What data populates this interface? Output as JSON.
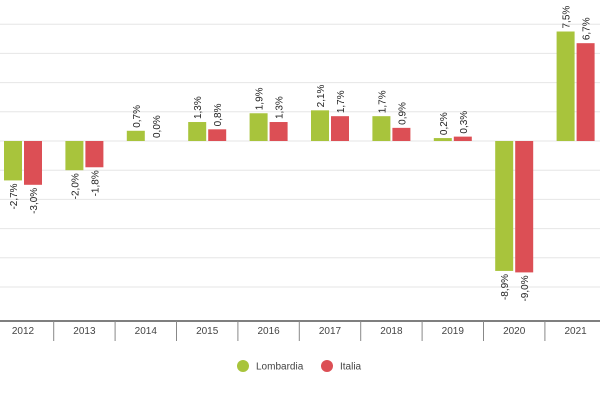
{
  "chart_data": {
    "type": "bar",
    "categories": [
      "2012",
      "2013",
      "2014",
      "2015",
      "2016",
      "2017",
      "2018",
      "2019",
      "2020",
      "2021"
    ],
    "series": [
      {
        "name": "Lombardia",
        "color": "#a8c43c",
        "values": [
          -2.7,
          -2.0,
          0.7,
          1.3,
          1.9,
          2.1,
          1.7,
          0.2,
          -8.9,
          7.5
        ],
        "labels": [
          "-2,7%",
          "-2,0%",
          "0,7%",
          "1,3%",
          "1,9%",
          "2,1%",
          "1,7%",
          "0,2%",
          "-8,9%",
          "7,5%"
        ]
      },
      {
        "name": "Italia",
        "color": "#dc4f55",
        "values": [
          -3.0,
          -1.8,
          0.0,
          0.8,
          1.3,
          1.7,
          0.9,
          0.3,
          -9.0,
          6.7
        ],
        "labels": [
          "-3,0%",
          "-1,8%",
          "0,0%",
          "0,8%",
          "1,3%",
          "1,7%",
          "0,9%",
          "0,3%",
          "-9,0%",
          "6,7%"
        ]
      }
    ],
    "ylim": [
      -12,
      8
    ],
    "grid": true,
    "legend_position": "bottom-center"
  }
}
